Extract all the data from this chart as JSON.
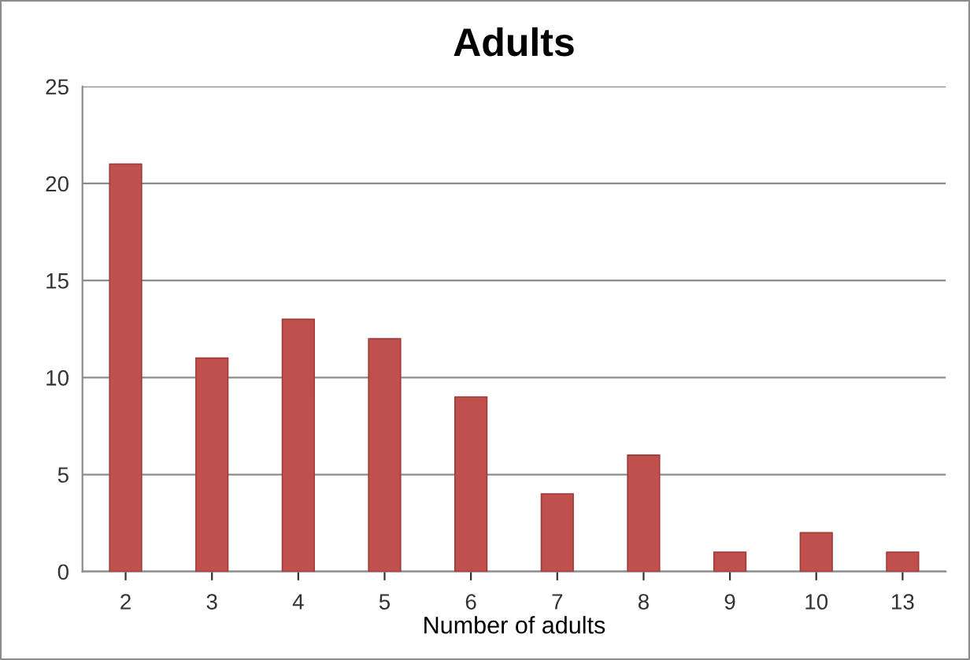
{
  "chart_data": {
    "type": "bar",
    "title": "Adults",
    "xlabel": "Number of adults",
    "categories": [
      "2",
      "3",
      "4",
      "5",
      "6",
      "7",
      "8",
      "9",
      "10",
      "13"
    ],
    "values": [
      21,
      11,
      13,
      12,
      9,
      4,
      6,
      1,
      2,
      1
    ],
    "color": "#c0504d",
    "ylim": [
      0,
      25
    ],
    "yticks": [
      0,
      5,
      10,
      15,
      20,
      25
    ],
    "grid": "y",
    "legend": false
  }
}
